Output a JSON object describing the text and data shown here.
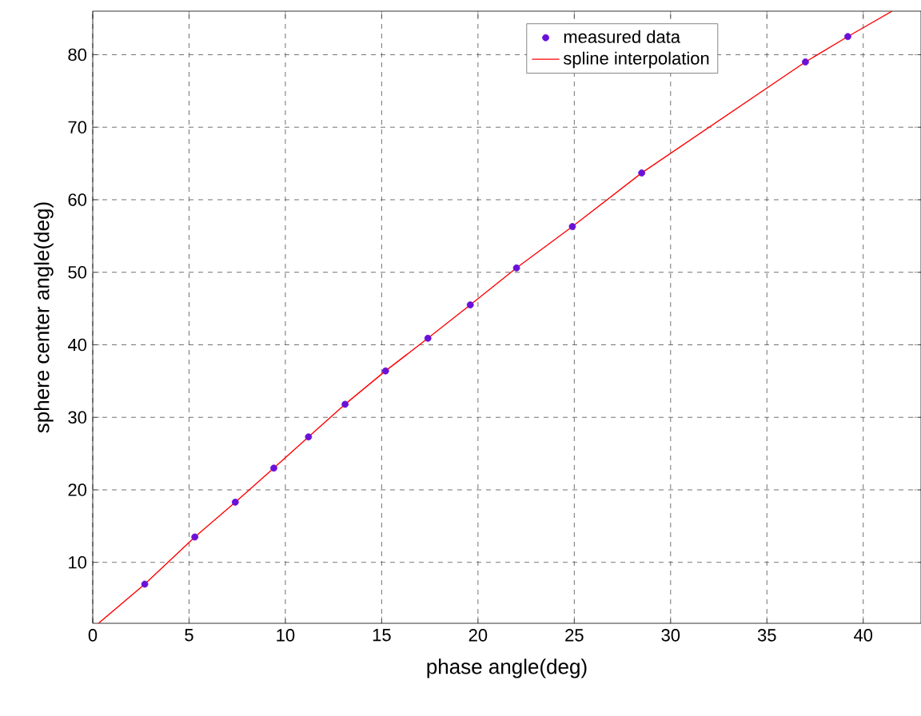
{
  "chart_data": {
    "type": "line",
    "xlabel": "phase angle(deg)",
    "ylabel": "sphere center angle(deg)",
    "xlim": [
      0,
      43
    ],
    "ylim": [
      1.6,
      86
    ],
    "xticks": [
      0,
      5,
      10,
      15,
      20,
      25,
      30,
      35,
      40
    ],
    "yticks": [
      10,
      20,
      30,
      40,
      50,
      60,
      70,
      80
    ],
    "grid": true,
    "legend": "top right",
    "series": [
      {
        "name": "measured data",
        "type": "scatter",
        "marker": "circle",
        "color": "#6a10d8",
        "x": [
          2.7,
          5.3,
          7.4,
          9.4,
          11.2,
          13.1,
          15.2,
          17.4,
          19.6,
          22.0,
          24.9,
          28.5,
          37.0,
          39.2
        ],
        "values": [
          7.0,
          13.5,
          18.3,
          23.0,
          27.3,
          31.8,
          36.4,
          40.9,
          45.5,
          50.6,
          56.3,
          63.7,
          79.0,
          82.5
        ]
      },
      {
        "name": "spline interpolation",
        "color": "#ff0000",
        "x": [
          0.3,
          2.7,
          5.3,
          7.4,
          9.4,
          11.2,
          13.1,
          15.2,
          17.4,
          19.6,
          22.0,
          24.9,
          28.5,
          37.0,
          39.2,
          41.5
        ],
        "values": [
          1.6,
          7.0,
          13.5,
          18.3,
          23.0,
          27.3,
          31.8,
          36.4,
          40.9,
          45.5,
          50.6,
          56.3,
          63.7,
          79.0,
          82.5,
          86.0
        ]
      }
    ]
  }
}
